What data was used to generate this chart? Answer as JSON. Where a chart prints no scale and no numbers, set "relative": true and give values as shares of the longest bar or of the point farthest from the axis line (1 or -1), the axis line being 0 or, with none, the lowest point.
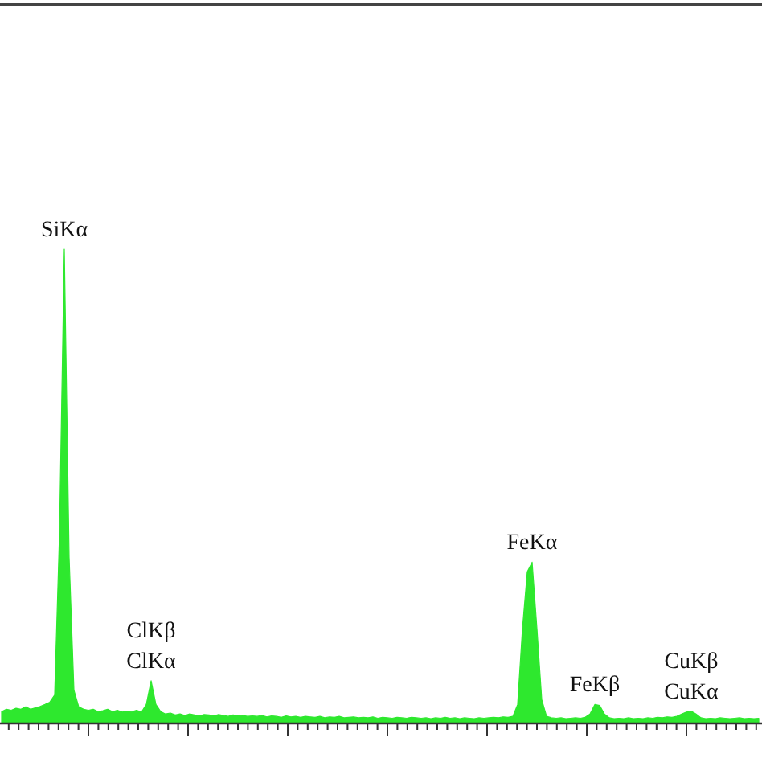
{
  "chart_data": {
    "type": "area",
    "relative": true,
    "color": "#2ee82e",
    "categories": [
      null,
      null,
      null,
      null,
      null,
      null,
      null,
      null,
      null,
      null,
      null,
      null,
      null,
      null,
      null,
      null,
      null,
      null,
      null,
      null,
      null,
      null,
      null,
      null,
      null,
      null,
      null,
      null,
      null,
      null,
      null,
      null,
      null,
      null,
      null,
      null,
      null,
      null,
      null,
      null,
      null,
      null,
      null,
      null,
      null,
      null,
      null,
      null,
      null,
      null,
      null,
      null,
      null,
      null,
      null,
      null,
      null,
      null,
      null,
      null,
      null,
      null,
      null,
      null,
      null,
      null,
      null,
      null,
      null,
      null,
      null,
      null,
      null,
      null,
      null,
      null,
      null,
      null,
      null,
      null,
      null,
      null,
      null,
      null,
      null,
      null,
      null,
      null,
      null,
      null,
      null,
      null,
      null,
      null,
      null,
      null,
      null,
      null,
      null,
      null,
      null,
      null,
      null,
      null,
      null,
      null,
      null,
      null,
      null,
      null,
      null,
      null,
      null,
      null,
      null,
      null,
      null,
      null,
      null,
      null,
      null,
      null,
      null,
      null,
      null,
      null,
      null,
      null,
      null,
      null,
      null,
      null,
      null,
      null,
      null,
      null,
      null,
      null,
      null,
      null,
      null,
      null,
      null,
      null,
      null,
      null,
      null,
      null,
      null,
      null,
      null,
      null,
      null,
      null,
      null,
      null,
      null,
      null
    ],
    "values": [
      0.025,
      0.03,
      0.028,
      0.032,
      0.03,
      0.035,
      0.03,
      0.033,
      0.036,
      0.04,
      0.045,
      0.06,
      0.4,
      1,
      0.35,
      0.07,
      0.035,
      0.03,
      0.028,
      0.03,
      0.025,
      0.027,
      0.03,
      0.025,
      0.028,
      0.024,
      0.026,
      0.025,
      0.028,
      0.024,
      0.04,
      0.09,
      0.04,
      0.025,
      0.02,
      0.022,
      0.018,
      0.02,
      0.017,
      0.02,
      0.018,
      0.016,
      0.019,
      0.018,
      0.016,
      0.019,
      0.017,
      0.015,
      0.018,
      0.016,
      0.017,
      0.015,
      0.016,
      0.015,
      0.017,
      0.014,
      0.016,
      0.015,
      0.013,
      0.016,
      0.014,
      0.015,
      0.013,
      0.015,
      0.014,
      0.013,
      0.015,
      0.012,
      0.014,
      0.013,
      0.015,
      0.012,
      0.013,
      0.014,
      0.012,
      0.013,
      0.012,
      0.014,
      0.011,
      0.013,
      0.012,
      0.011,
      0.013,
      0.012,
      0.011,
      0.013,
      0.012,
      0.011,
      0.012,
      0.01,
      0.012,
      0.011,
      0.013,
      0.011,
      0.012,
      0.01,
      0.012,
      0.011,
      0.01,
      0.012,
      0.011,
      0.012,
      0.013,
      0.012,
      0.014,
      0.013,
      0.015,
      0.04,
      0.2,
      0.32,
      0.34,
      0.2,
      0.05,
      0.015,
      0.012,
      0.011,
      0.012,
      0.01,
      0.011,
      0.012,
      0.011,
      0.013,
      0.02,
      0.04,
      0.038,
      0.02,
      0.012,
      0.01,
      0.011,
      0.01,
      0.012,
      0.01,
      0.011,
      0.01,
      0.012,
      0.011,
      0.013,
      0.012,
      0.014,
      0.013,
      0.015,
      0.02,
      0.024,
      0.026,
      0.02,
      0.012,
      0.01,
      0.011,
      0.01,
      0.012,
      0.011,
      0.01,
      0.011,
      0.012,
      0.01,
      0.011,
      0.01,
      0.011
    ],
    "annotations": [
      "SiKα",
      "ClKβ\nClKα",
      "FeKα",
      "FeKβ",
      "CuKβ\nCuKα"
    ]
  }
}
